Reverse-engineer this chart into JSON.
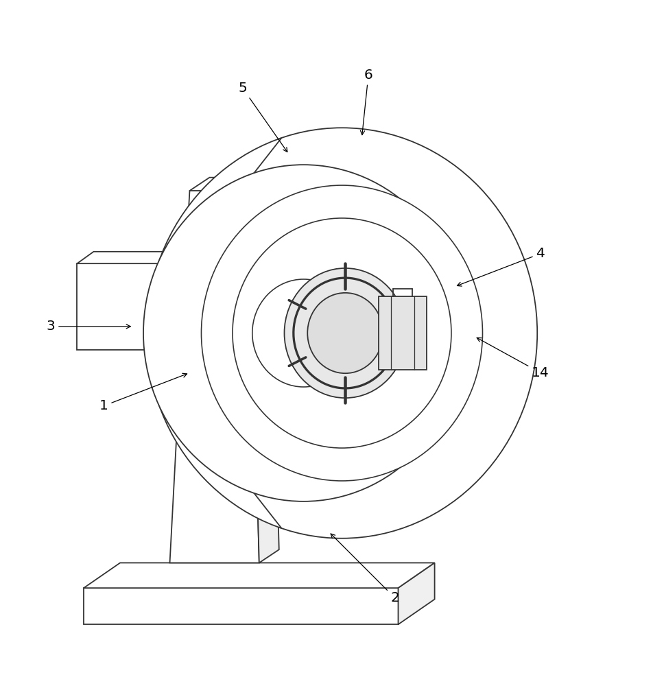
{
  "background_color": "#ffffff",
  "line_color": "#333333",
  "line_width": 1.3,
  "fig_width": 9.68,
  "fig_height": 10.0,
  "labels": {
    "1": [
      0.155,
      0.405,
      0.285,
      0.455
    ],
    "2": [
      0.595,
      0.115,
      0.495,
      0.215
    ],
    "3": [
      0.075,
      0.525,
      0.2,
      0.525
    ],
    "4": [
      0.815,
      0.635,
      0.685,
      0.585
    ],
    "5": [
      0.365,
      0.885,
      0.435,
      0.785
    ],
    "6": [
      0.555,
      0.905,
      0.545,
      0.81
    ],
    "14": [
      0.815,
      0.455,
      0.715,
      0.51
    ]
  }
}
